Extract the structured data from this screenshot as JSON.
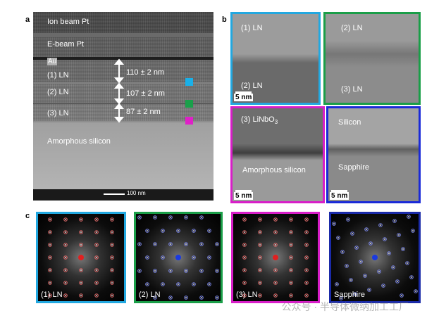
{
  "panel_labels": {
    "a": "a",
    "b": "b",
    "c": "c"
  },
  "panel_a": {
    "layers": {
      "ion_beam_pt": "Ion beam Pt",
      "e_beam_pt": "E-beam Pt",
      "au": "Au",
      "ln1": "(1) LN",
      "ln2": "(2) LN",
      "ln3": "(3) LN",
      "amorphous_silicon": "Amorphous silicon"
    },
    "thicknesses": {
      "ln1": "110 ± 2 nm",
      "ln2": "107 ± 2 nm",
      "ln3": "87 ± 2 nm"
    },
    "markers": {
      "ln1_color": "#1ab0e8",
      "ln2_color": "#1aa04a",
      "ln3_color": "#e020c8"
    },
    "scalebar": "100 nm"
  },
  "panel_b": {
    "tiles": {
      "top_left": {
        "upper": "(1) LN",
        "lower": "(2) LN",
        "border": "#22a8e0",
        "scale": "5 nm"
      },
      "top_right": {
        "upper": "(2) LN",
        "lower": "(3) LN",
        "border": "#1a9e48",
        "scale": "5 nm"
      },
      "bottom_left": {
        "upper": "(3) LiNbO",
        "upper_sub": "3",
        "lower": "Amorphous silicon",
        "border": "#d81ec8",
        "scale": "5 nm"
      },
      "bottom_right": {
        "upper": "Silicon",
        "lower": "Sapphire",
        "border": "#1a2ad8",
        "scale": "5 nm"
      }
    }
  },
  "panel_c": {
    "patterns": [
      {
        "label": "(1) LN",
        "border": "#22a8e0",
        "center_color": "#e02020",
        "spot_color": "#e06a6a"
      },
      {
        "label": "(2) LN",
        "border": "#1a9e48",
        "center_color": "#1a3ae0",
        "spot_color": "#7a86e8"
      },
      {
        "label": "(3) LN",
        "border": "#d81ec8",
        "center_color": "#e02020",
        "spot_color": "#e06a6a"
      },
      {
        "label": "Sapphire",
        "border": "#1a2aa8",
        "center_color": "#1a3ae0",
        "spot_color": "#7a86e8"
      }
    ]
  },
  "watermark": "公众号 · 半导体微纳加工工厂"
}
